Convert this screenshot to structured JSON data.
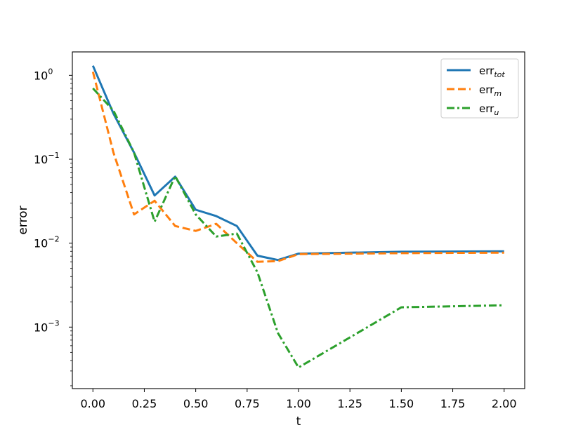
{
  "chart_data": {
    "type": "line",
    "title": "",
    "xlabel": "t",
    "ylabel": "error",
    "xlim": [
      -0.1,
      2.1
    ],
    "ylim": [
      0.000185,
      1.9
    ],
    "yscale": "log",
    "grid": false,
    "legend_position": "top-right",
    "x_ticks": [
      0.0,
      0.25,
      0.5,
      0.75,
      1.0,
      1.25,
      1.5,
      1.75,
      2.0
    ],
    "x_tick_labels": [
      "0.00",
      "0.25",
      "0.50",
      "0.75",
      "1.00",
      "1.25",
      "1.50",
      "1.75",
      "2.00"
    ],
    "y_ticks": [
      {
        "value": 1,
        "base": "10",
        "exp": "0"
      },
      {
        "value": 0.1,
        "base": "10",
        "exp": "−1"
      },
      {
        "value": 0.01,
        "base": "10",
        "exp": "−2"
      },
      {
        "value": 0.001,
        "base": "10",
        "exp": "−3"
      }
    ],
    "series": [
      {
        "name": "err",
        "subscript": "tot",
        "color": "#1f77b4",
        "dash": "solid",
        "x": [
          0.0,
          0.1,
          0.2,
          0.3,
          0.4,
          0.5,
          0.6,
          0.7,
          0.8,
          0.9,
          1.0,
          1.5,
          2.0
        ],
        "y": [
          1.3,
          0.35,
          0.12,
          0.037,
          0.062,
          0.025,
          0.021,
          0.016,
          0.0071,
          0.0063,
          0.0075,
          0.0079,
          0.008
        ]
      },
      {
        "name": "err",
        "subscript": "m",
        "color": "#ff7f0e",
        "dash": "dashed",
        "x": [
          0.0,
          0.1,
          0.2,
          0.3,
          0.4,
          0.5,
          0.6,
          0.7,
          0.8,
          0.9,
          1.0,
          1.5,
          2.0
        ],
        "y": [
          1.1,
          0.12,
          0.022,
          0.032,
          0.016,
          0.014,
          0.017,
          0.01,
          0.006,
          0.0061,
          0.0074,
          0.0076,
          0.0077
        ]
      },
      {
        "name": "err",
        "subscript": "u",
        "color": "#2ca02c",
        "dash": "dashdot",
        "x": [
          0.0,
          0.1,
          0.2,
          0.3,
          0.4,
          0.5,
          0.6,
          0.7,
          0.8,
          0.9,
          1.0,
          1.5,
          2.0
        ],
        "y": [
          0.7,
          0.38,
          0.12,
          0.018,
          0.063,
          0.022,
          0.012,
          0.013,
          0.0045,
          0.00085,
          0.00033,
          0.00172,
          0.00182
        ]
      }
    ]
  }
}
